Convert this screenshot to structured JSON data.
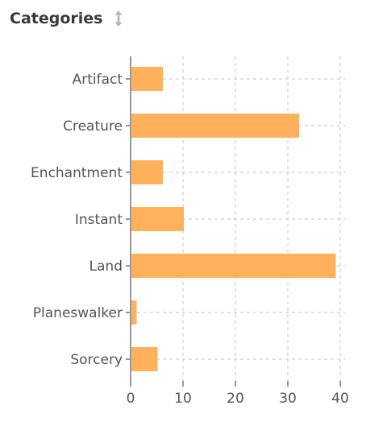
{
  "header": {
    "title": "Categories",
    "sort_icon": "sort-vertical-arrows-icon"
  },
  "colors": {
    "bar": "#ffb25b",
    "grid": "#d0d0d0",
    "axis": "#999999",
    "text": "#555555",
    "title": "#3a3a3a"
  },
  "chart_data": {
    "type": "bar",
    "orientation": "horizontal",
    "categories": [
      "Artifact",
      "Creature",
      "Enchantment",
      "Instant",
      "Land",
      "Planeswalker",
      "Sorcery"
    ],
    "values": [
      6,
      32,
      6,
      10,
      39,
      1,
      5
    ],
    "xlim": [
      0,
      40
    ],
    "x_ticks": [
      0,
      10,
      20,
      30,
      40
    ],
    "grid": true,
    "legend": "none"
  }
}
